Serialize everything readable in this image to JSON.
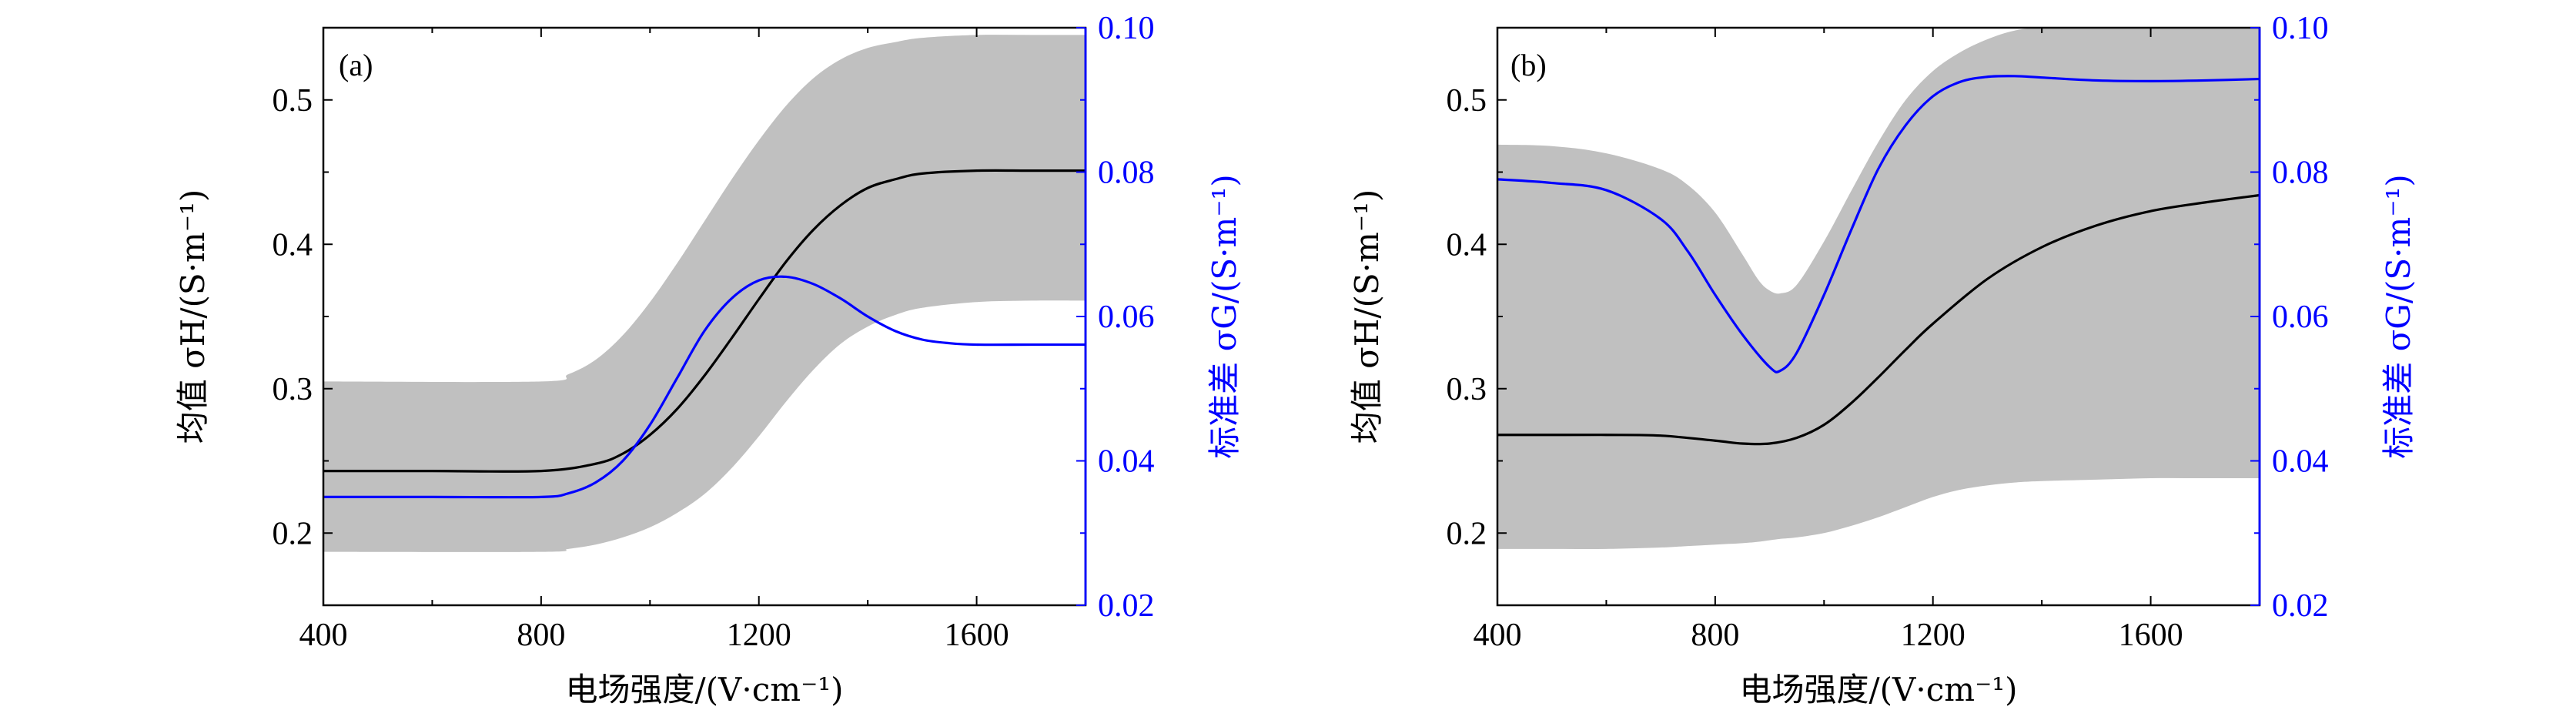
{
  "colors": {
    "band": "#c0c0c0",
    "mean": "#000000",
    "std": "#0000ff",
    "axis": "#000000"
  },
  "chart_data": [
    {
      "type": "line",
      "panel_label": "(a)",
      "xlabel": "电场强度/(V·cm⁻¹)",
      "ylabel_left": "均值 σH/(S·m⁻¹)",
      "ylabel_right": "标准差 σG/(S·m⁻¹)",
      "xlim": [
        400,
        1800
      ],
      "ylim_left": [
        0.15,
        0.55
      ],
      "ylim_right": [
        0.02,
        0.1
      ],
      "xticks": [
        400,
        800,
        1200,
        1600
      ],
      "xtick_labels": [
        "400",
        "800",
        "1200",
        "1600"
      ],
      "yticks_left": [
        0.2,
        0.3,
        0.4,
        0.5
      ],
      "ytick_labels_left": [
        "0.2",
        "0.3",
        "0.4",
        "0.5"
      ],
      "yticks_right": [
        0.02,
        0.04,
        0.06,
        0.08,
        0.1
      ],
      "ytick_labels_right": [
        "0.02",
        "0.04",
        "0.06",
        "0.08",
        "0.10"
      ],
      "series": [
        {
          "name": "均值 σH",
          "axis": "left",
          "x": [
            400,
            600,
            800,
            900,
            950,
            1000,
            1050,
            1100,
            1150,
            1200,
            1250,
            1300,
            1350,
            1400,
            1450,
            1500,
            1600,
            1700,
            1800
          ],
          "values": [
            0.243,
            0.243,
            0.243,
            0.248,
            0.255,
            0.268,
            0.286,
            0.309,
            0.335,
            0.362,
            0.388,
            0.41,
            0.427,
            0.439,
            0.445,
            0.449,
            0.451,
            0.451,
            0.451
          ]
        },
        {
          "name": "标准差 σG",
          "axis": "right",
          "x": [
            400,
            600,
            800,
            850,
            900,
            950,
            1000,
            1050,
            1100,
            1150,
            1200,
            1250,
            1300,
            1350,
            1400,
            1450,
            1500,
            1550,
            1600,
            1700,
            1800
          ],
          "values": [
            0.035,
            0.035,
            0.035,
            0.0355,
            0.037,
            0.04,
            0.045,
            0.0515,
            0.058,
            0.0625,
            0.065,
            0.0655,
            0.0645,
            0.0625,
            0.06,
            0.058,
            0.0568,
            0.0563,
            0.0561,
            0.0561,
            0.0561
          ]
        },
        {
          "name": "uncertainty band",
          "axis": "left",
          "x": [
            400,
            800,
            850,
            900,
            950,
            1000,
            1050,
            1100,
            1150,
            1200,
            1250,
            1300,
            1350,
            1400,
            1450,
            1500,
            1600,
            1700,
            1800
          ],
          "upper": [
            0.305,
            0.305,
            0.31,
            0.32,
            0.337,
            0.36,
            0.387,
            0.416,
            0.445,
            0.472,
            0.496,
            0.515,
            0.528,
            0.536,
            0.54,
            0.543,
            0.545,
            0.545,
            0.545
          ],
          "lower": [
            0.187,
            0.187,
            0.189,
            0.192,
            0.197,
            0.204,
            0.214,
            0.227,
            0.245,
            0.267,
            0.291,
            0.313,
            0.331,
            0.343,
            0.351,
            0.356,
            0.36,
            0.361,
            0.361
          ]
        }
      ]
    },
    {
      "type": "line",
      "panel_label": "(b)",
      "xlabel": "电场强度/(V·cm⁻¹)",
      "ylabel_left": "均值 σH/(S·m⁻¹)",
      "ylabel_right": "标准差 σG/(S·m⁻¹)",
      "xlim": [
        400,
        1800
      ],
      "ylim_left": [
        0.15,
        0.55
      ],
      "ylim_right": [
        0.02,
        0.1
      ],
      "xticks": [
        400,
        800,
        1200,
        1600
      ],
      "xtick_labels": [
        "400",
        "800",
        "1200",
        "1600"
      ],
      "yticks_left": [
        0.2,
        0.3,
        0.4,
        0.5
      ],
      "ytick_labels_left": [
        "0.2",
        "0.3",
        "0.4",
        "0.5"
      ],
      "yticks_right": [
        0.02,
        0.04,
        0.06,
        0.08,
        0.1
      ],
      "ytick_labels_right": [
        "0.02",
        "0.04",
        "0.06",
        "0.08",
        "0.10"
      ],
      "series": [
        {
          "name": "均值 σH",
          "axis": "left",
          "x": [
            400,
            500,
            600,
            700,
            800,
            850,
            900,
            950,
            1000,
            1050,
            1100,
            1150,
            1200,
            1300,
            1400,
            1500,
            1600,
            1700,
            1800
          ],
          "values": [
            0.268,
            0.268,
            0.268,
            0.2675,
            0.264,
            0.262,
            0.262,
            0.266,
            0.275,
            0.29,
            0.308,
            0.327,
            0.345,
            0.376,
            0.398,
            0.413,
            0.423,
            0.429,
            0.434
          ]
        },
        {
          "name": "标准差 σG",
          "axis": "right",
          "x": [
            400,
            500,
            600,
            700,
            750,
            800,
            850,
            900,
            920,
            950,
            1000,
            1050,
            1100,
            1150,
            1200,
            1250,
            1300,
            1350,
            1400,
            1500,
            1600,
            1700,
            1800
          ],
          "values": [
            0.079,
            0.0785,
            0.0775,
            0.0735,
            0.069,
            0.063,
            0.0575,
            0.053,
            0.0525,
            0.055,
            0.063,
            0.072,
            0.0805,
            0.0865,
            0.0905,
            0.0925,
            0.0932,
            0.0933,
            0.0931,
            0.0927,
            0.0926,
            0.0927,
            0.0929
          ]
        },
        {
          "name": "uncertainty band",
          "axis": "left",
          "x": [
            400,
            500,
            600,
            700,
            750,
            800,
            850,
            880,
            900,
            920,
            950,
            1000,
            1050,
            1100,
            1150,
            1200,
            1250,
            1300,
            1350,
            1400,
            1500,
            1600,
            1700,
            1800
          ],
          "upper": [
            0.469,
            0.468,
            0.463,
            0.452,
            0.441,
            0.422,
            0.393,
            0.375,
            0.368,
            0.366,
            0.372,
            0.402,
            0.437,
            0.471,
            0.5,
            0.52,
            0.533,
            0.542,
            0.548,
            0.55,
            0.55,
            0.55,
            0.55,
            0.55
          ],
          "lower": [
            0.189,
            0.189,
            0.189,
            0.19,
            0.191,
            0.192,
            0.193,
            0.194,
            0.195,
            0.196,
            0.197,
            0.2,
            0.205,
            0.211,
            0.218,
            0.225,
            0.23,
            0.233,
            0.235,
            0.236,
            0.237,
            0.238,
            0.238,
            0.238
          ]
        }
      ]
    }
  ]
}
